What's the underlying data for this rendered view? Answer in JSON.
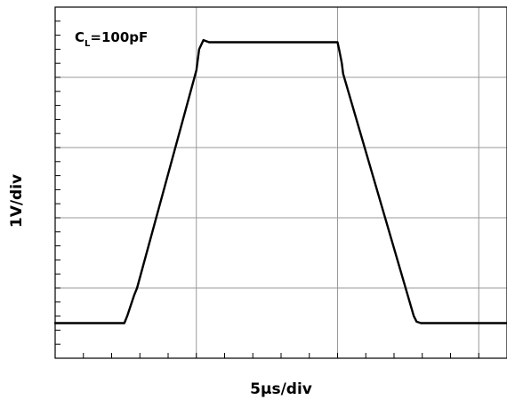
{
  "chart_data": {
    "type": "line",
    "title": "",
    "annotation": {
      "main": "C",
      "subscript": "L",
      "rest": "=100pF"
    },
    "xlabel": "5µs/div",
    "ylabel": "1V/div",
    "x_unit": "µs",
    "y_unit": "V",
    "x_divisions": 5,
    "y_divisions": 5,
    "xlim": [
      0,
      25
    ],
    "ylim": [
      -0.5,
      4.5
    ],
    "grid": true,
    "series": [
      {
        "name": "",
        "color": "#000000",
        "x": [
          0,
          2.45,
          2.55,
          2.8,
          2.9,
          5.0,
          5.1,
          5.25,
          5.45,
          10.0,
          10.08,
          10.15,
          10.2,
          12.7,
          12.8,
          12.95,
          15.0,
          16.0
        ],
        "y": [
          0,
          0,
          0.1,
          0.4,
          0.5,
          3.6,
          3.9,
          4.03,
          4.0,
          4.0,
          3.85,
          3.7,
          3.55,
          0.1,
          0.02,
          0,
          0,
          0
        ]
      }
    ]
  }
}
